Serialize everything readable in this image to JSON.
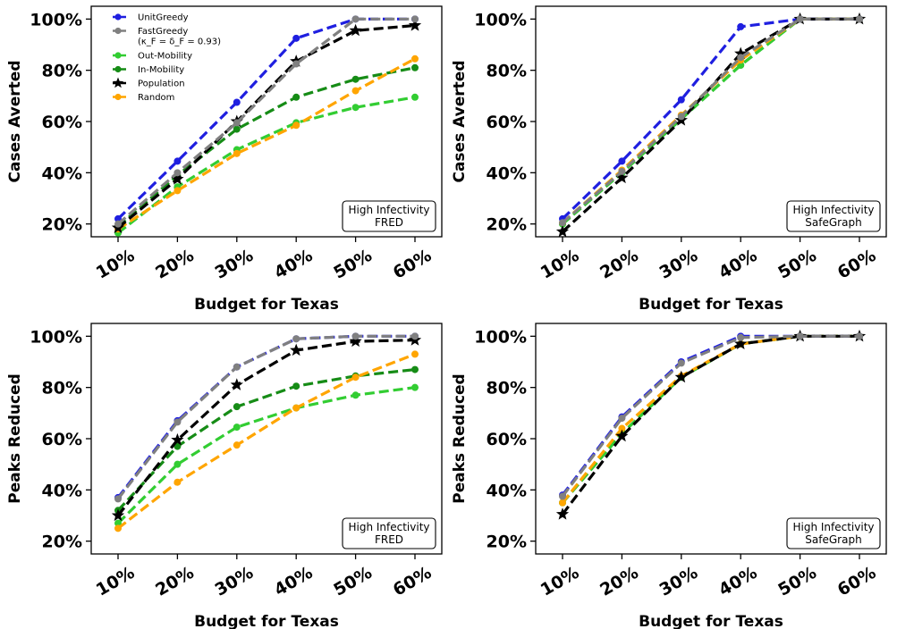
{
  "legend": {
    "entries": [
      {
        "series": "UnitGreedy",
        "label": "UnitGreedy",
        "label2": ""
      },
      {
        "series": "FastGreedy",
        "label": "FastGreedy",
        "label2": "(κ_F = δ_F = 0.93)"
      },
      {
        "series": "Out-Mobility",
        "label": "Out-Mobility",
        "label2": ""
      },
      {
        "series": "In-Mobility",
        "label": "In-Mobility",
        "label2": ""
      },
      {
        "series": "Population",
        "label": "Population",
        "label2": ""
      },
      {
        "series": "Random",
        "label": "Random",
        "label2": ""
      }
    ]
  },
  "styles": {
    "UnitGreedy": {
      "color": "#1f1fe0",
      "marker": "circle"
    },
    "FastGreedy": {
      "color": "#808080",
      "marker": "circle"
    },
    "Out-Mobility": {
      "color": "#32cd32",
      "marker": "circle"
    },
    "In-Mobility": {
      "color": "#168c16",
      "marker": "circle"
    },
    "Population": {
      "color": "#000000",
      "marker": "star"
    },
    "Random": {
      "color": "#ffa500",
      "marker": "circle"
    }
  },
  "chart_data": [
    {
      "type": "line",
      "xlabel": "Budget for Texas",
      "ylabel": "Cases Averted",
      "annotation": [
        "High Infectivity",
        "FRED"
      ],
      "categories": [
        "10%",
        "20%",
        "30%",
        "40%",
        "50%",
        "60%"
      ],
      "yticks": [
        "20%",
        "40%",
        "60%",
        "80%",
        "100%"
      ],
      "ylim": [
        15,
        105
      ],
      "series": [
        {
          "name": "UnitGreedy",
          "values": [
            22,
            44.5,
            67.5,
            92.5,
            100,
            100
          ]
        },
        {
          "name": "FastGreedy",
          "values": [
            20,
            40,
            59.5,
            82.5,
            100,
            100
          ]
        },
        {
          "name": "Out-Mobility",
          "values": [
            16.5,
            34.5,
            49,
            59.5,
            65.5,
            69.5
          ]
        },
        {
          "name": "In-Mobility",
          "values": [
            19,
            39,
            57,
            69.5,
            76.5,
            81
          ]
        },
        {
          "name": "Population",
          "values": [
            18.5,
            37.5,
            60,
            83.5,
            95.5,
            97.5
          ]
        },
        {
          "name": "Random",
          "values": [
            18,
            33,
            47.5,
            58.5,
            72,
            84.5
          ]
        }
      ]
    },
    {
      "type": "line",
      "xlabel": "Budget for Texas",
      "ylabel": "Cases Averted",
      "annotation": [
        "High Infectivity",
        "SafeGraph"
      ],
      "categories": [
        "10%",
        "20%",
        "30%",
        "40%",
        "50%",
        "60%"
      ],
      "yticks": [
        "20%",
        "40%",
        "60%",
        "80%",
        "100%"
      ],
      "ylim": [
        15,
        105
      ],
      "series": [
        {
          "name": "UnitGreedy",
          "values": [
            22,
            44.5,
            68.5,
            97,
            100,
            100
          ]
        },
        {
          "name": "FastGreedy",
          "values": [
            20.5,
            40.5,
            62,
            85,
            100,
            100
          ]
        },
        {
          "name": "Out-Mobility",
          "values": [
            20,
            40,
            61,
            82,
            100,
            100
          ]
        },
        {
          "name": "In-Mobility",
          "values": [
            20,
            40,
            61,
            82,
            100,
            100
          ]
        },
        {
          "name": "Population",
          "values": [
            17,
            38,
            60.5,
            86.5,
            100,
            100
          ]
        },
        {
          "name": "Random",
          "values": [
            20.5,
            41,
            62.5,
            84,
            100,
            100
          ]
        }
      ]
    },
    {
      "type": "line",
      "xlabel": "Budget for Texas",
      "ylabel": "Peaks Reduced",
      "annotation": [
        "High Infectivity",
        "FRED"
      ],
      "categories": [
        "10%",
        "20%",
        "30%",
        "40%",
        "50%",
        "60%"
      ],
      "yticks": [
        "20%",
        "40%",
        "60%",
        "80%",
        "100%"
      ],
      "ylim": [
        15,
        105
      ],
      "series": [
        {
          "name": "UnitGreedy",
          "values": [
            37,
            67,
            88,
            99,
            100,
            100
          ]
        },
        {
          "name": "FastGreedy",
          "values": [
            36.5,
            66.5,
            88,
            99,
            100,
            100
          ]
        },
        {
          "name": "Out-Mobility",
          "values": [
            27,
            50,
            64.5,
            72,
            77,
            80
          ]
        },
        {
          "name": "In-Mobility",
          "values": [
            32,
            57,
            72.5,
            80.5,
            84.5,
            87
          ]
        },
        {
          "name": "Population",
          "values": [
            30,
            59.5,
            81,
            94.5,
            98,
            98.5
          ]
        },
        {
          "name": "Random",
          "values": [
            25,
            43,
            57.5,
            72,
            84,
            93
          ]
        }
      ]
    },
    {
      "type": "line",
      "xlabel": "Budget for Texas",
      "ylabel": "Peaks Reduced",
      "annotation": [
        "High Infectivity",
        "SafeGraph"
      ],
      "categories": [
        "10%",
        "20%",
        "30%",
        "40%",
        "50%",
        "60%"
      ],
      "yticks": [
        "20%",
        "40%",
        "60%",
        "80%",
        "100%"
      ],
      "ylim": [
        15,
        105
      ],
      "series": [
        {
          "name": "UnitGreedy",
          "values": [
            38,
            68.5,
            90,
            100,
            100,
            100
          ]
        },
        {
          "name": "FastGreedy",
          "values": [
            37.5,
            68,
            89.5,
            99.5,
            100,
            100
          ]
        },
        {
          "name": "Out-Mobility",
          "values": [
            35,
            62,
            84,
            97,
            100,
            100
          ]
        },
        {
          "name": "In-Mobility",
          "values": [
            35,
            62,
            84,
            97,
            100,
            100
          ]
        },
        {
          "name": "Population",
          "values": [
            30.5,
            61,
            84,
            97,
            100,
            100
          ]
        },
        {
          "name": "Random",
          "values": [
            35,
            64,
            84.5,
            97,
            100,
            100
          ]
        }
      ]
    }
  ]
}
